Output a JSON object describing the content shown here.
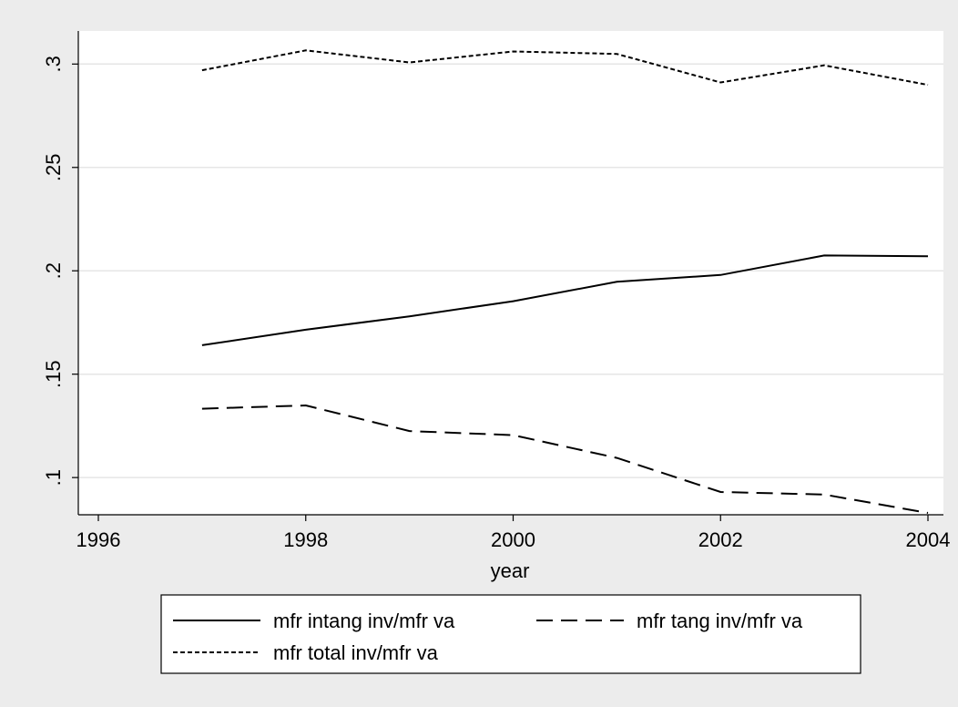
{
  "chart_data": {
    "type": "line",
    "xlabel": "year",
    "ylabel": "",
    "xlim": [
      1996,
      2004
    ],
    "ylim": [
      0.082,
      0.316
    ],
    "x_ticks": [
      1996,
      1998,
      2000,
      2002,
      2004
    ],
    "x_tick_labels": [
      "1996",
      "1998",
      "2000",
      "2002",
      "2004"
    ],
    "y_ticks": [
      0.1,
      0.15,
      0.2,
      0.25,
      0.3
    ],
    "y_tick_labels": [
      ".1",
      ".15",
      ".2",
      ".25",
      ".3"
    ],
    "grid": "horizontal",
    "legend_placement": "bottom",
    "x": [
      1997,
      1998,
      1999,
      2000,
      2001,
      2002,
      2003,
      2004
    ],
    "series": [
      {
        "name": "mfr intang inv/mfr va",
        "dash": "solid",
        "color": "#000000",
        "values": [
          0.164,
          0.1715,
          0.178,
          0.1853,
          0.1947,
          0.198,
          0.2074,
          0.207
        ]
      },
      {
        "name": "mfr tang inv/mfr va",
        "dash": "long-dash",
        "color": "#000000",
        "values": [
          0.1333,
          0.1349,
          0.1225,
          0.1205,
          0.1095,
          0.093,
          0.0918,
          0.0829
        ]
      },
      {
        "name": "mfr total inv/mfr va",
        "dash": "short-dash",
        "color": "#000000",
        "values": [
          0.297,
          0.3066,
          0.3008,
          0.3061,
          0.3049,
          0.2911,
          0.2994,
          0.2899
        ]
      }
    ]
  },
  "colors": {
    "background": "#ececec",
    "plot_area": "#ffffff",
    "grid": "#e6e6e6",
    "line": "#000000"
  }
}
